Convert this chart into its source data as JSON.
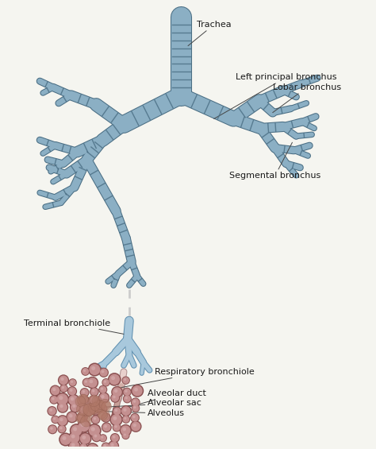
{
  "background_color": "#f5f5f0",
  "bronchial_fill": "#8bafc4",
  "bronchial_edge": "#4a6e84",
  "bronchiole_fill": "#a8c8dc",
  "bronchiole_edge": "#6090b0",
  "resp_fill": "#e8d0cc",
  "resp_edge": "#b09090",
  "alveoli_fill": "#c49090",
  "alveoli_edge": "#8a5050",
  "alveoli_shadow": "#a07070",
  "text_color": "#1a1a1a",
  "arrow_color": "#444444",
  "labels": {
    "trachea": "Trachea",
    "left_principal": "Left principal bronchus",
    "lobar": "Lobar bronchus",
    "segmental": "Segmental bronchus",
    "terminal": "Terminal bronchiole",
    "respiratory": "Respiratory bronchiole",
    "alveolar_duct": "Alveolar duct",
    "alveolar_sac": "Alveolar sac",
    "alveolus": "Alveolus"
  },
  "figsize": [
    4.74,
    5.65
  ],
  "dpi": 100
}
